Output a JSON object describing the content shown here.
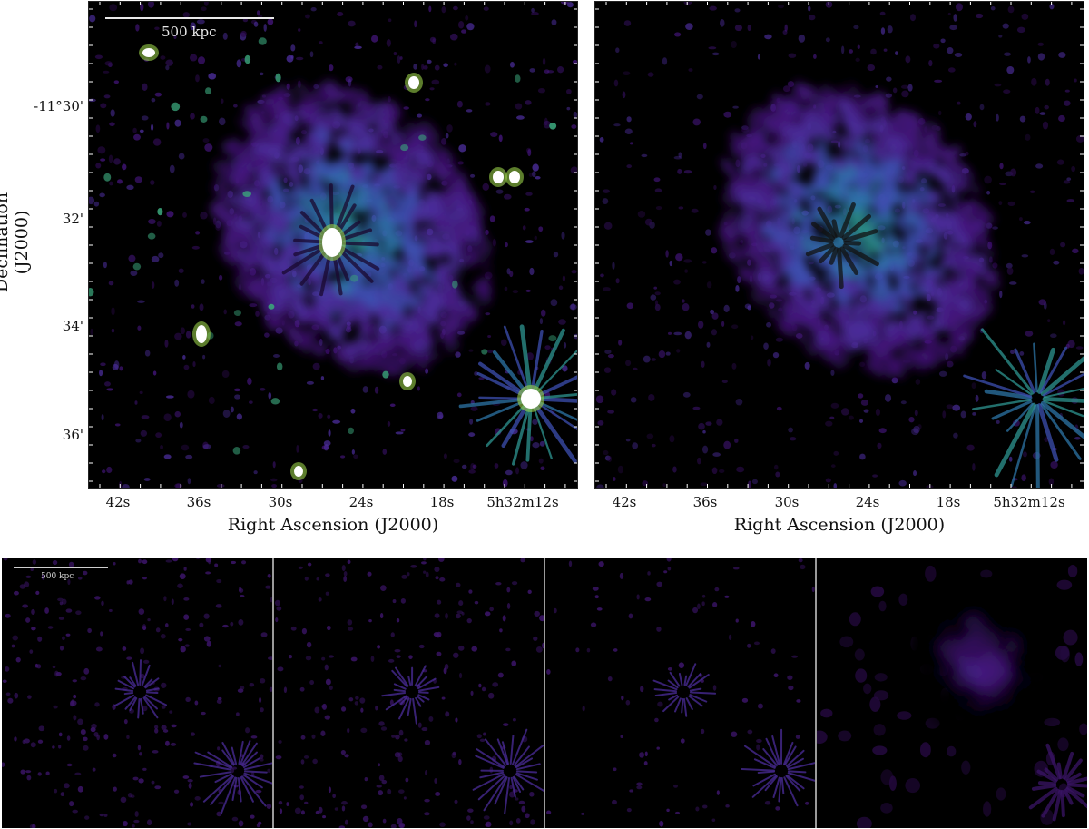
{
  "axes": {
    "ylabel": "Declination (J2000)",
    "xlabel": "Right Ascension (J2000)",
    "yticks": [
      "-11°30'",
      "32'",
      "34'",
      "36'"
    ],
    "xticks": [
      "42s",
      "36s",
      "30s",
      "24s",
      "18s",
      "5h32m12s"
    ]
  },
  "scalebar": {
    "label": "500 kpc"
  },
  "colors": {
    "background": "#000000",
    "colormap": [
      "#2a0a4a",
      "#4b1b8c",
      "#3d4fb0",
      "#2a7fa0",
      "#3aa47a",
      "#8fd04a",
      "#ffffff"
    ]
  },
  "panels": [
    {
      "name": "full-image",
      "has_compact_sources": true
    },
    {
      "name": "source-subtracted",
      "has_compact_sources": false
    },
    {
      "name": "scale-1"
    },
    {
      "name": "scale-2"
    },
    {
      "name": "scale-3"
    },
    {
      "name": "scale-4"
    }
  ]
}
